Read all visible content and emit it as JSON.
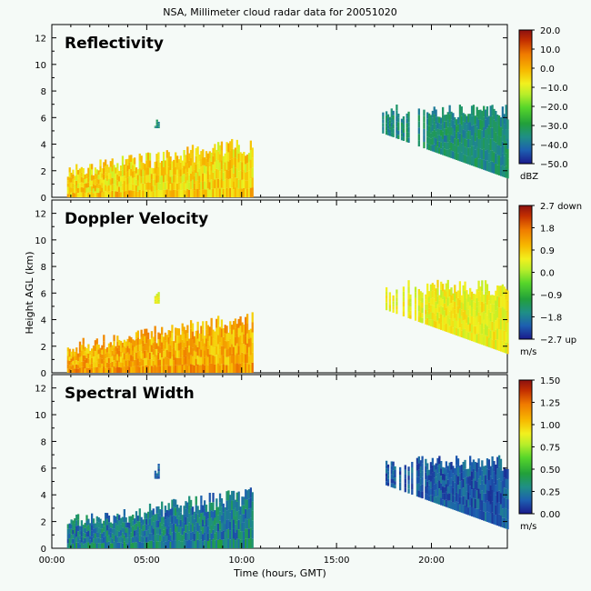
{
  "chart_data": {
    "type": "heatmap",
    "title": "NSA, Millimeter cloud radar data for 20051020",
    "xlabel": "Time (hours, GMT)",
    "ylabel": "Height AGL (km)",
    "xlim": [
      0,
      24
    ],
    "ylim": [
      0,
      13
    ],
    "x_ticks": [
      "00:00",
      "05:00",
      "10:00",
      "15:00",
      "20:00"
    ],
    "x_tick_values": [
      0,
      5,
      10,
      15,
      20
    ],
    "y_ticks": [
      "0",
      "2",
      "4",
      "6",
      "8",
      "10",
      "12"
    ],
    "y_tick_values": [
      0,
      2,
      4,
      6,
      8,
      10,
      12
    ],
    "panels": [
      {
        "name": "Reflectivity",
        "units": "dBZ",
        "colorbar_ticks": [
          "20.0",
          "10.0",
          "0.0",
          "−10.0",
          "−20.0",
          "−30.0",
          "−40.0",
          "−50.0"
        ],
        "colorbar_range": [
          -50,
          20
        ],
        "typical_value_low_cloud": -5,
        "typical_value_high_cloud": -35
      },
      {
        "name": "Doppler Velocity",
        "units": "m/s",
        "colorbar_ticks": [
          "2.7 down",
          "1.8",
          "0.9",
          "0.0",
          "−0.9",
          "−1.8",
          "−2.7 up"
        ],
        "colorbar_range": [
          -2.7,
          2.7
        ],
        "typical_value_low_cloud": 1.2,
        "typical_value_high_cloud": 0.5
      },
      {
        "name": "Spectral Width",
        "units": "m/s",
        "colorbar_ticks": [
          "1.50",
          "1.25",
          "1.00",
          "0.75",
          "0.50",
          "0.25",
          "0.00"
        ],
        "colorbar_range": [
          0,
          1.5
        ],
        "typical_value_low_cloud": 0.25,
        "typical_value_high_cloud": 0.15
      }
    ],
    "echoes": [
      {
        "label": "low cloud layer",
        "time_start": 0.8,
        "time_end": 10.6,
        "base_km": 0,
        "top_km": [
          2.0,
          4.3
        ]
      },
      {
        "label": "isolated echo",
        "time_start": 5.4,
        "time_end": 5.6,
        "base_km": 5.2,
        "top_km": [
          5.8,
          5.8
        ]
      },
      {
        "label": "upper cloud",
        "time_start": 17.4,
        "time_end": 24.0,
        "base_km": 1.5,
        "top_km": [
          6.4,
          6.4
        ]
      }
    ]
  }
}
